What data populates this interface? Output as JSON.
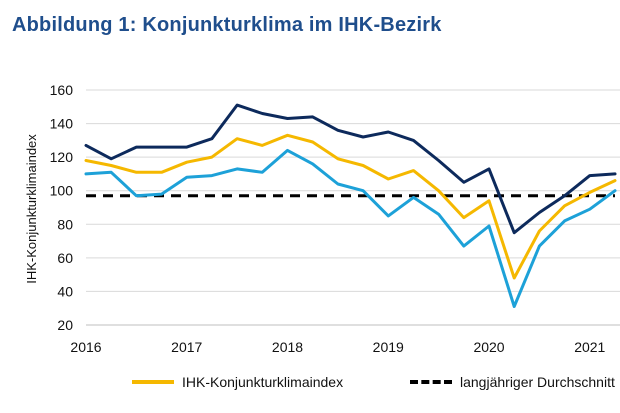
{
  "title": "Abbildung 1: Konjunkturklima im IHK-Bezirk",
  "chart_data": {
    "type": "line",
    "ylabel": "IHK-Konjunkturklimaindex",
    "xlabel": "",
    "ylim": [
      20,
      160
    ],
    "xlim": [
      2016,
      2021.3
    ],
    "yticks": [
      20,
      40,
      60,
      80,
      100,
      120,
      140,
      160
    ],
    "xticks": [
      "2016",
      "2017",
      "2018",
      "2019",
      "2020",
      "2021"
    ],
    "grid": true,
    "legend_position": "bottom",
    "x": [
      2016.0,
      2016.25,
      2016.5,
      2016.75,
      2017.0,
      2017.25,
      2017.5,
      2017.75,
      2018.0,
      2018.25,
      2018.5,
      2018.75,
      2019.0,
      2019.25,
      2019.5,
      2019.75,
      2020.0,
      2020.25,
      2020.5,
      2020.75,
      2021.0,
      2021.25
    ],
    "series": [
      {
        "name": "",
        "color": "#0d2a5c",
        "style": "solid",
        "values": [
          127,
          119,
          126,
          126,
          126,
          131,
          151,
          146,
          143,
          144,
          136,
          132,
          135,
          130,
          118,
          105,
          113,
          75,
          87,
          97,
          109,
          110
        ]
      },
      {
        "name": "IHK-Konjunkturklimaindex",
        "color": "#f5b800",
        "style": "solid",
        "values": [
          118,
          115,
          111,
          111,
          117,
          120,
          131,
          127,
          133,
          129,
          119,
          115,
          107,
          112,
          100,
          84,
          94,
          48,
          76,
          91,
          99,
          106
        ]
      },
      {
        "name": "",
        "color": "#1da1d8",
        "style": "solid",
        "values": [
          110,
          111,
          97,
          98,
          108,
          109,
          113,
          111,
          124,
          116,
          104,
          100,
          85,
          96,
          86,
          67,
          79,
          31,
          67,
          82,
          89,
          100
        ]
      },
      {
        "name": "langjähriger Durchschnitt",
        "color": "#000000",
        "style": "dashed",
        "values": [
          97,
          97,
          97,
          97,
          97,
          97,
          97,
          97,
          97,
          97,
          97,
          97,
          97,
          97,
          97,
          97,
          97,
          97,
          97,
          97,
          97,
          97
        ]
      }
    ]
  }
}
